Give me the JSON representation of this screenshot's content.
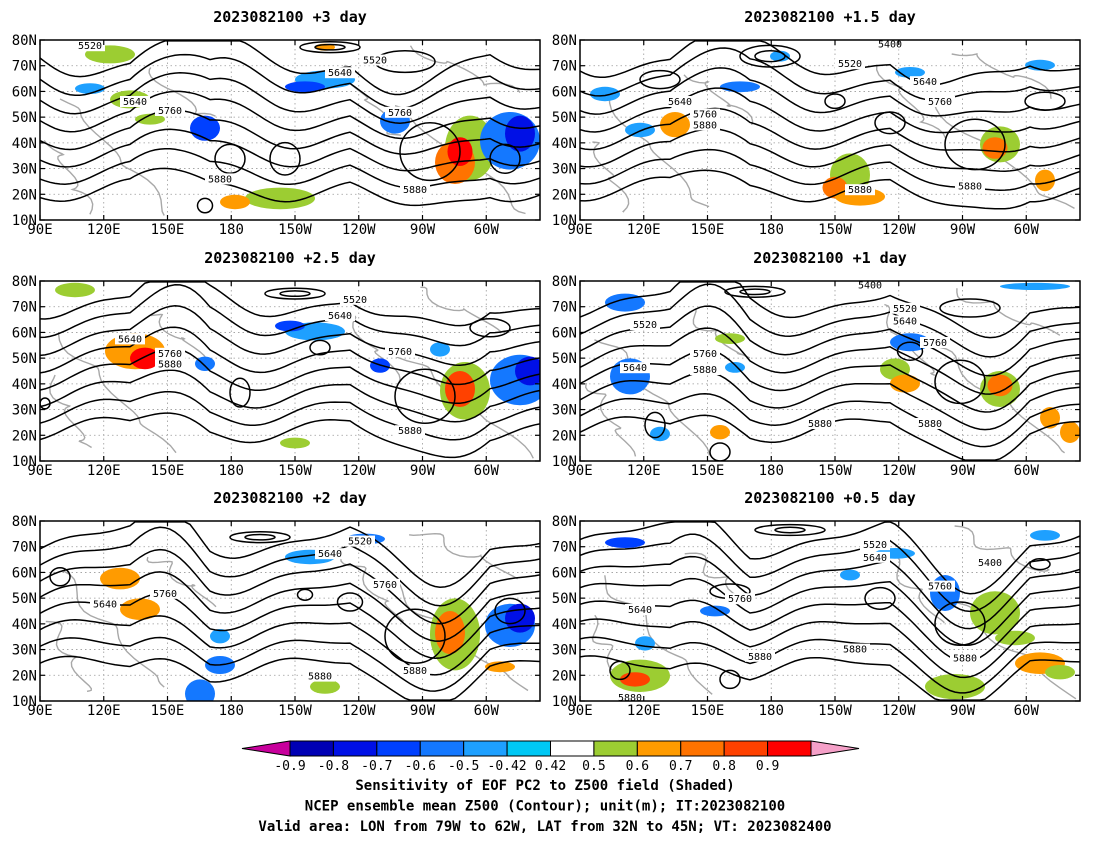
{
  "panels": [
    {
      "title": "2023082100 +3 day",
      "contour_labels": [
        "5520",
        "5520",
        "5640",
        "5640",
        "5760",
        "5760",
        "5880",
        "5880"
      ]
    },
    {
      "title": "2023082100 +1.5 day",
      "contour_labels": [
        "5400",
        "5520",
        "5640",
        "5640",
        "5760",
        "5760",
        "5880",
        "5880",
        "5880"
      ]
    },
    {
      "title": "2023082100 +2.5 day",
      "contour_labels": [
        "5520",
        "5640",
        "5640",
        "5760",
        "5760",
        "5880",
        "5880"
      ]
    },
    {
      "title": "2023082100 +1 day",
      "contour_labels": [
        "5400",
        "5520",
        "5520",
        "5640",
        "5640",
        "5760",
        "5760",
        "5880",
        "5880",
        "5880"
      ]
    },
    {
      "title": "2023082100 +2 day",
      "contour_labels": [
        "5520",
        "5640",
        "5640",
        "5760",
        "5760",
        "5880",
        "5880"
      ]
    },
    {
      "title": "2023082100 +0.5 day",
      "contour_labels": [
        "5520",
        "5640",
        "5400",
        "5640",
        "5760",
        "5760",
        "5880",
        "5880",
        "5880",
        "5880"
      ]
    }
  ],
  "lat_ticks": [
    "80N",
    "70N",
    "60N",
    "50N",
    "40N",
    "30N",
    "20N",
    "10N"
  ],
  "lon_ticks": [
    "90E",
    "120E",
    "150E",
    "180",
    "150W",
    "120W",
    "90W",
    "60W"
  ],
  "colorbar": {
    "levels": [
      "-0.9",
      "-0.8",
      "-0.7",
      "-0.6",
      "-0.5",
      "-0.42",
      "0.42",
      "0.5",
      "0.6",
      "0.7",
      "0.8",
      "0.9"
    ],
    "colors": [
      "#c8009c",
      "#0000b4",
      "#0010e6",
      "#0040ff",
      "#1478ff",
      "#1ea0ff",
      "#00c8f5",
      "#ffffff",
      "#9ccd32",
      "#ff9b00",
      "#ff7300",
      "#ff4100",
      "#ff0000",
      "#f5a0c8"
    ]
  },
  "caption": [
    "Sensitivity of EOF PC2 to Z500 field (Shaded)",
    "NCEP ensemble mean Z500 (Contour); unit(m); IT:2023082100",
    "Valid area: LON from 79W to 62W, LAT from 32N to 45N; VT: 2023082400"
  ]
}
